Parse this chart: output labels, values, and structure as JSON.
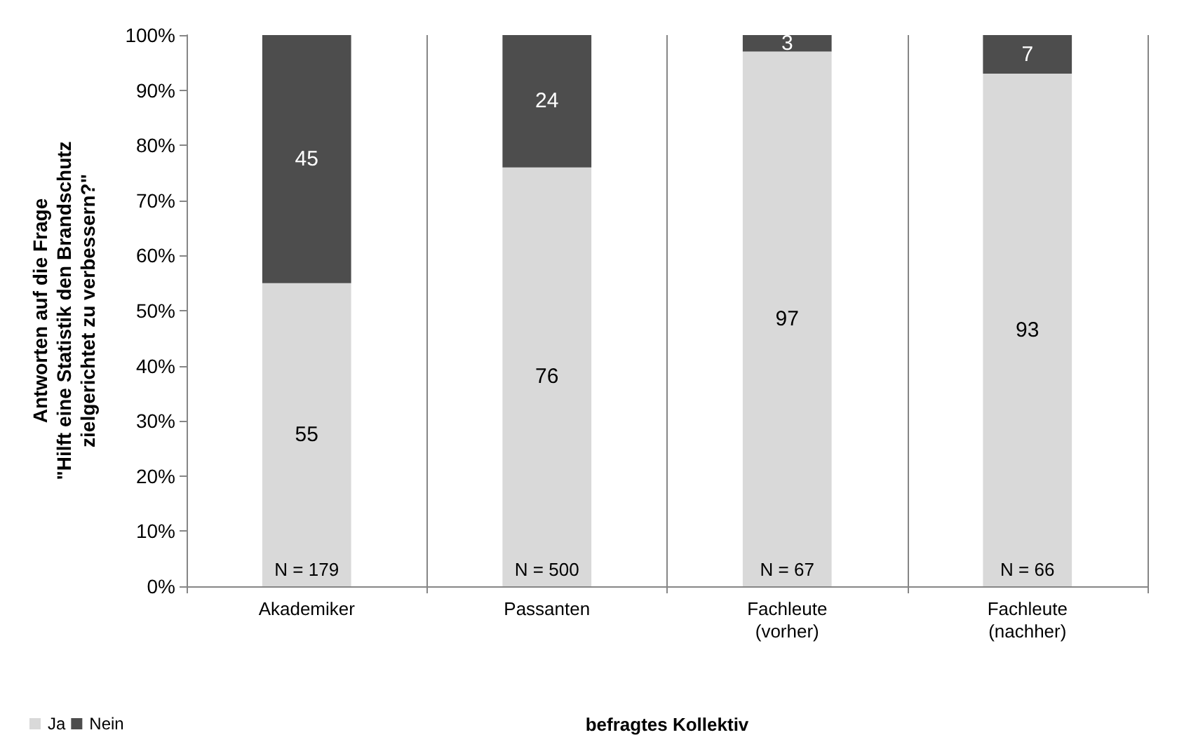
{
  "chart_data": {
    "type": "bar",
    "stacked": true,
    "categories": [
      "Akademiker",
      "Passanten",
      "Fachleute\n(vorher)",
      "Fachleute\n(nachher)"
    ],
    "series": [
      {
        "name": "Ja",
        "color": "#d9d9d9",
        "values": [
          55,
          76,
          97,
          93
        ]
      },
      {
        "name": "Nein",
        "color": "#4d4d4d",
        "values": [
          45,
          24,
          3,
          7
        ]
      }
    ],
    "ylim": [
      0,
      100
    ],
    "yticks": [
      {
        "value": 0,
        "label": "0%"
      },
      {
        "value": 10,
        "label": "10%"
      },
      {
        "value": 20,
        "label": "20%"
      },
      {
        "value": 30,
        "label": "30%"
      },
      {
        "value": 40,
        "label": "40%"
      },
      {
        "value": 50,
        "label": "50%"
      },
      {
        "value": 60,
        "label": "60%"
      },
      {
        "value": 70,
        "label": "70%"
      },
      {
        "value": 80,
        "label": "80%"
      },
      {
        "value": 90,
        "label": "90%"
      },
      {
        "value": 100,
        "label": "100%"
      }
    ],
    "xlabel": "befragtes Kollektiv",
    "ylabel": "Antworten auf die Frage\n\"Hilft eine Statistik den Brandschutz\nzielgerichtet zu verbessern?\"",
    "data_labels": true,
    "grid": "x",
    "legend": "bottom left",
    "annotations": [
      "N = 179",
      "N = 500",
      "N = 67",
      "N = 66"
    ]
  }
}
